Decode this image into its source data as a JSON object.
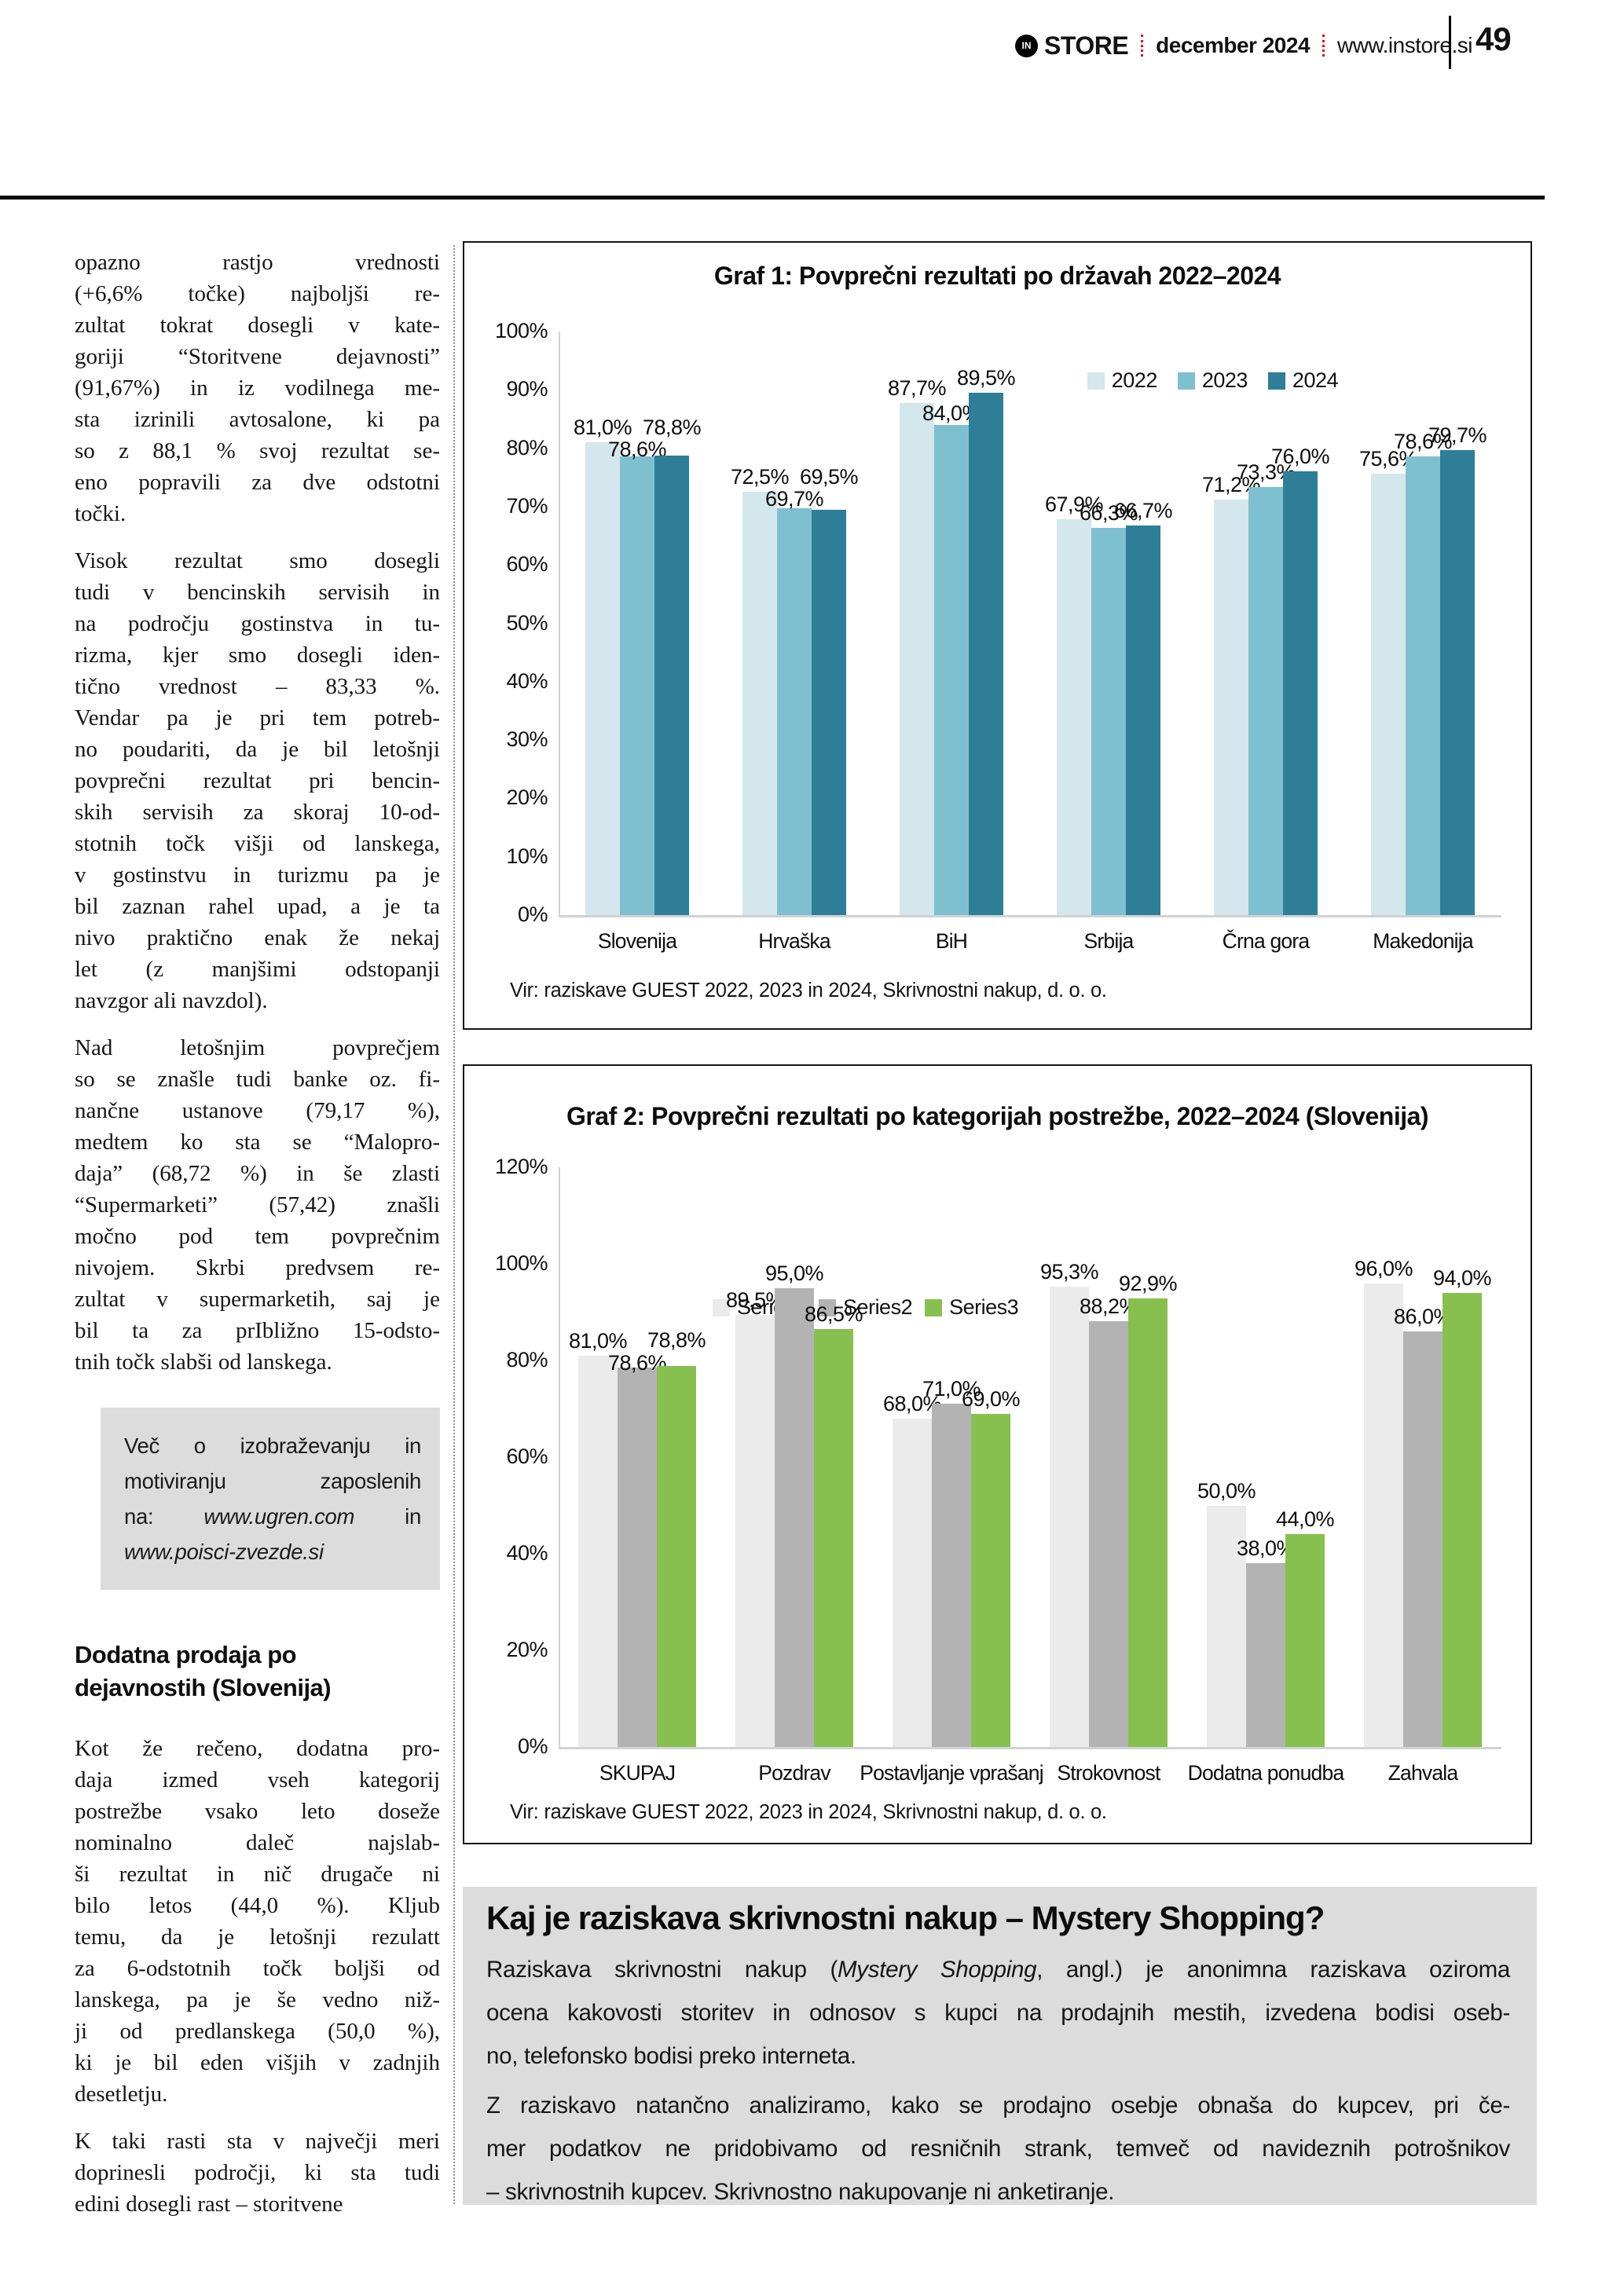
{
  "header": {
    "logo_letters": "IN",
    "brand": "STORE",
    "date": "december 2024",
    "site": "www.instore.si",
    "page_number": "49"
  },
  "colors": {
    "accent_red": "#e30613",
    "panel_gray": "#dcdcdc",
    "bar_2022": "#d3e7ed",
    "bar_2023": "#7fc0d0",
    "bar_2024": "#2e7e97",
    "bar_series1": "#ebebeb",
    "bar_series2": "#b3b3b3",
    "bar_series3": "#87c04f"
  },
  "left_column": {
    "paragraphs": [
      {
        "lines": [
          "opazno rastjo vrednosti",
          "(+6,6% točke) najboljši re-",
          "zultat tokrat dosegli v kate-",
          "goriji “Storitvene dejavnosti”",
          "(91,67%) in iz vodilnega me-",
          "sta izrinili avtosalone, ki pa",
          "so z 88,1 % svoj rezultat se-",
          "eno popravili za dve odstotni",
          "točki."
        ]
      },
      {
        "lines": [
          "Visok rezultat smo dosegli",
          "tudi v bencinskih servisih in",
          "na področju gostinstva in tu-",
          "rizma, kjer smo dosegli iden-",
          "tično vrednost – 83,33 %.",
          "Vendar pa je pri tem potreb-",
          "no poudariti, da je bil letošnji",
          "povprečni rezultat pri bencin-",
          "skih servisih za skoraj 10-od-",
          "stotnih točk višji od lanskega,",
          "v gostinstvu in turizmu pa je",
          "bil zaznan rahel upad, a je ta",
          "nivo praktično enak že nekaj",
          "let (z manjšimi odstopanji",
          "navzgor ali navzdol)."
        ]
      },
      {
        "lines": [
          "Nad letošnjim povprečjem",
          "so se znašle tudi banke oz. fi-",
          "nančne ustanove (79,17 %),",
          "medtem ko sta se “Malopro-",
          "daja” (68,72 %) in še zlasti",
          "“Supermarketi” (57,42) znašli",
          "močno pod tem povprečnim",
          "nivojem. Skrbi predvsem re-",
          "zultat v supermarketih, saj je",
          "bil ta za prIbližno 15-odsto-",
          "tnih točk slabši od lanskega."
        ]
      },
      {
        "lines": [
          "Kot že rečeno, dodatna pro-",
          "daja izmed vseh kategorij",
          "postrežbe vsako leto doseže",
          "nominalno daleč najslab-",
          "ši rezultat in nič drugače ni",
          "bilo letos (44,0 %). Kljub",
          "temu, da je letošnji rezulatt",
          "za 6-odstotnih točk boljši od",
          "lanskega, pa je še vedno niž-",
          "ji od predlanskega (50,0 %),",
          "ki je bil eden višjih v zadnjih",
          "desetletju."
        ]
      },
      {
        "lines": [
          "K taki rasti sta v največji meri",
          "doprinesli področji, ki sta tudi",
          "edini dosegli rast – storitvene"
        ]
      }
    ],
    "promo_box": {
      "lines": [
        "Več o izobraževanju in",
        "motiviranju zaposlenih",
        [
          {
            "t": "na: "
          },
          {
            "t": "www.ugren.com",
            "i": true
          },
          {
            "t": " in"
          }
        ],
        [
          {
            "t": "www.poisci-zvezde.si",
            "i": true
          }
        ]
      ]
    },
    "heading": {
      "lines": [
        "Dodatna prodaja po",
        "dejavnostih (Slovenija)"
      ]
    }
  },
  "chart_data": [
    {
      "type": "bar",
      "title": "Graf 1: Povprečni rezultati po državah 2022–2024",
      "categories": [
        "Slovenija",
        "Hrvaška",
        "BiH",
        "Srbija",
        "Črna gora",
        "Makedonija"
      ],
      "series": [
        {
          "name": "2022",
          "color": "#d3e7ed",
          "values": [
            81.0,
            72.5,
            87.7,
            67.9,
            71.2,
            75.6
          ],
          "labels": [
            "81,0%",
            "72,5%",
            "87,7%",
            "67,9%",
            "71,2%",
            "75,6%"
          ]
        },
        {
          "name": "2023",
          "color": "#7fc0d0",
          "values": [
            78.6,
            69.7,
            84.0,
            66.3,
            73.3,
            78.6
          ],
          "labels": [
            "78,6%",
            "69,7%",
            "84,0%",
            "66,3%",
            "73,3%",
            "78,6%"
          ]
        },
        {
          "name": "2024",
          "color": "#2e7e97",
          "values": [
            78.8,
            69.5,
            89.5,
            66.7,
            76.0,
            79.7
          ],
          "labels": [
            "78,8%",
            "69,5%",
            "89,5%",
            "66,7%",
            "76,0%",
            "79,7%"
          ]
        }
      ],
      "ylim": [
        0,
        100
      ],
      "yticks": [
        {
          "v": 0,
          "label": "0%"
        },
        {
          "v": 10,
          "label": "10%"
        },
        {
          "v": 20,
          "label": "20%"
        },
        {
          "v": 30,
          "label": "30%"
        },
        {
          "v": 40,
          "label": "40%"
        },
        {
          "v": 50,
          "label": "50%"
        },
        {
          "v": 60,
          "label": "60%"
        },
        {
          "v": 70,
          "label": "70%"
        },
        {
          "v": 80,
          "label": "80%"
        },
        {
          "v": 90,
          "label": "90%"
        },
        {
          "v": 100,
          "label": "100%"
        }
      ],
      "grid": false,
      "legend_position": "top-right",
      "source": "Vir: raziskave GUEST 2022, 2023 in 2024, Skrivnostni nakup, d. o. o."
    },
    {
      "type": "bar",
      "title": "Graf 2: Povprečni rezultati po kategorijah postrežbe, 2022–2024 (Slovenija)",
      "categories": [
        "SKUPAJ",
        "Pozdrav",
        "Postavljanje vprašanj",
        "Strokovnost",
        "Dodatna ponudba",
        "Zahvala"
      ],
      "series": [
        {
          "name": "Series1",
          "color": "#ebebeb",
          "values": [
            81.0,
            89.5,
            68.0,
            95.3,
            50.0,
            96.0
          ],
          "labels": [
            "81,0%",
            "89,5%",
            "68,0%",
            "95,3%",
            "50,0%",
            "96,0%"
          ]
        },
        {
          "name": "Series2",
          "color": "#b3b3b3",
          "values": [
            78.6,
            95.0,
            71.0,
            88.2,
            38.0,
            86.0
          ],
          "labels": [
            "78,6%",
            "95,0%",
            "71,0%",
            "88,2%",
            "38,0%",
            "86,0%"
          ]
        },
        {
          "name": "Series3",
          "color": "#87c04f",
          "values": [
            78.8,
            86.5,
            69.0,
            92.9,
            44.0,
            94.0
          ],
          "labels": [
            "78,8%",
            "86,5%",
            "69,0%",
            "92,9%",
            "44,0%",
            "94,0%"
          ]
        }
      ],
      "ylim": [
        0,
        120
      ],
      "yticks": [
        {
          "v": 0,
          "label": "0%"
        },
        {
          "v": 20,
          "label": "20%"
        },
        {
          "v": 40,
          "label": "40%"
        },
        {
          "v": 60,
          "label": "60%"
        },
        {
          "v": 80,
          "label": "80%"
        },
        {
          "v": 100,
          "label": "100%"
        },
        {
          "v": 120,
          "label": "120%"
        }
      ],
      "grid": false,
      "legend_position": "upper-left",
      "source": "Vir: raziskave GUEST 2022, 2023 in 2024, Skrivnostni nakup, d. o. o."
    }
  ],
  "info_box": {
    "title": "Kaj je raziskava skrivnostni nakup – Mystery Shopping?",
    "paragraphs": [
      {
        "lines": [
          [
            {
              "t": "Raziskava skrivnostni nakup ("
            },
            {
              "t": "Mystery Shopping",
              "i": true
            },
            {
              "t": ", angl.) je anonimna raziskava oziroma"
            }
          ],
          "ocena kakovosti storitev in odnosov s kupci na prodajnih mestih, izvedena bodisi oseb-",
          "no, telefonsko bodisi preko interneta."
        ]
      },
      {
        "lines": [
          "Z raziskavo natančno analiziramo, kako se prodajno osebje obnaša do kupcev, pri če-",
          "mer podatkov ne pridobivamo od resničnih strank, temveč od navideznih potrošnikov",
          "– skrivnostnih kupcev. Skrivnostno nakupovanje ni anketiranje."
        ]
      }
    ]
  }
}
